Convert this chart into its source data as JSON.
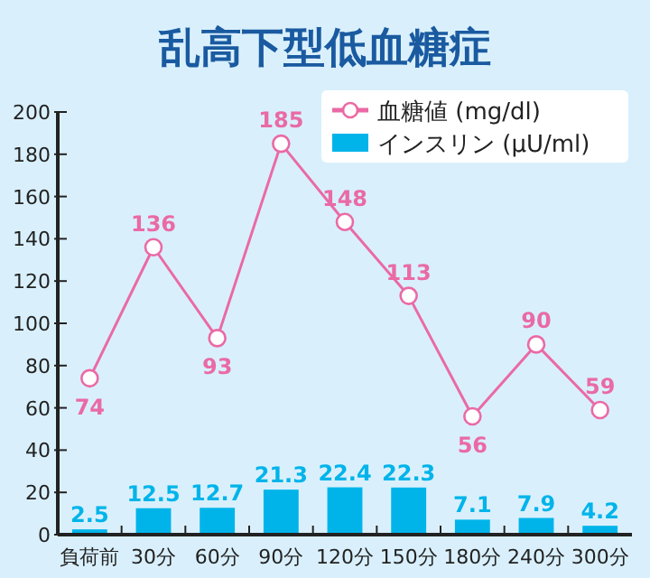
{
  "chart_data": {
    "type": "bar",
    "title": "乱高下型低血糖症",
    "categories": [
      "負荷前",
      "30分",
      "60分",
      "90分",
      "120分",
      "150分",
      "180分",
      "240分",
      "300分"
    ],
    "series": [
      {
        "name": "血糖値 (mg/dl)",
        "type": "line",
        "marker": "circle",
        "color": "#ea6aa5",
        "values": [
          74,
          136,
          93,
          185,
          148,
          113,
          56,
          90,
          59
        ]
      },
      {
        "name": "インスリン (μU/ml)",
        "color": "#00b4ea",
        "values": [
          2.5,
          12.5,
          12.7,
          21.3,
          22.4,
          22.3,
          7.1,
          7.9,
          4.2
        ]
      }
    ],
    "ylim": [
      0,
      200
    ],
    "yticks": [
      0,
      20,
      40,
      60,
      80,
      100,
      120,
      140,
      160,
      180,
      200
    ],
    "data_labels": true,
    "legend": "top right",
    "grid": false
  }
}
